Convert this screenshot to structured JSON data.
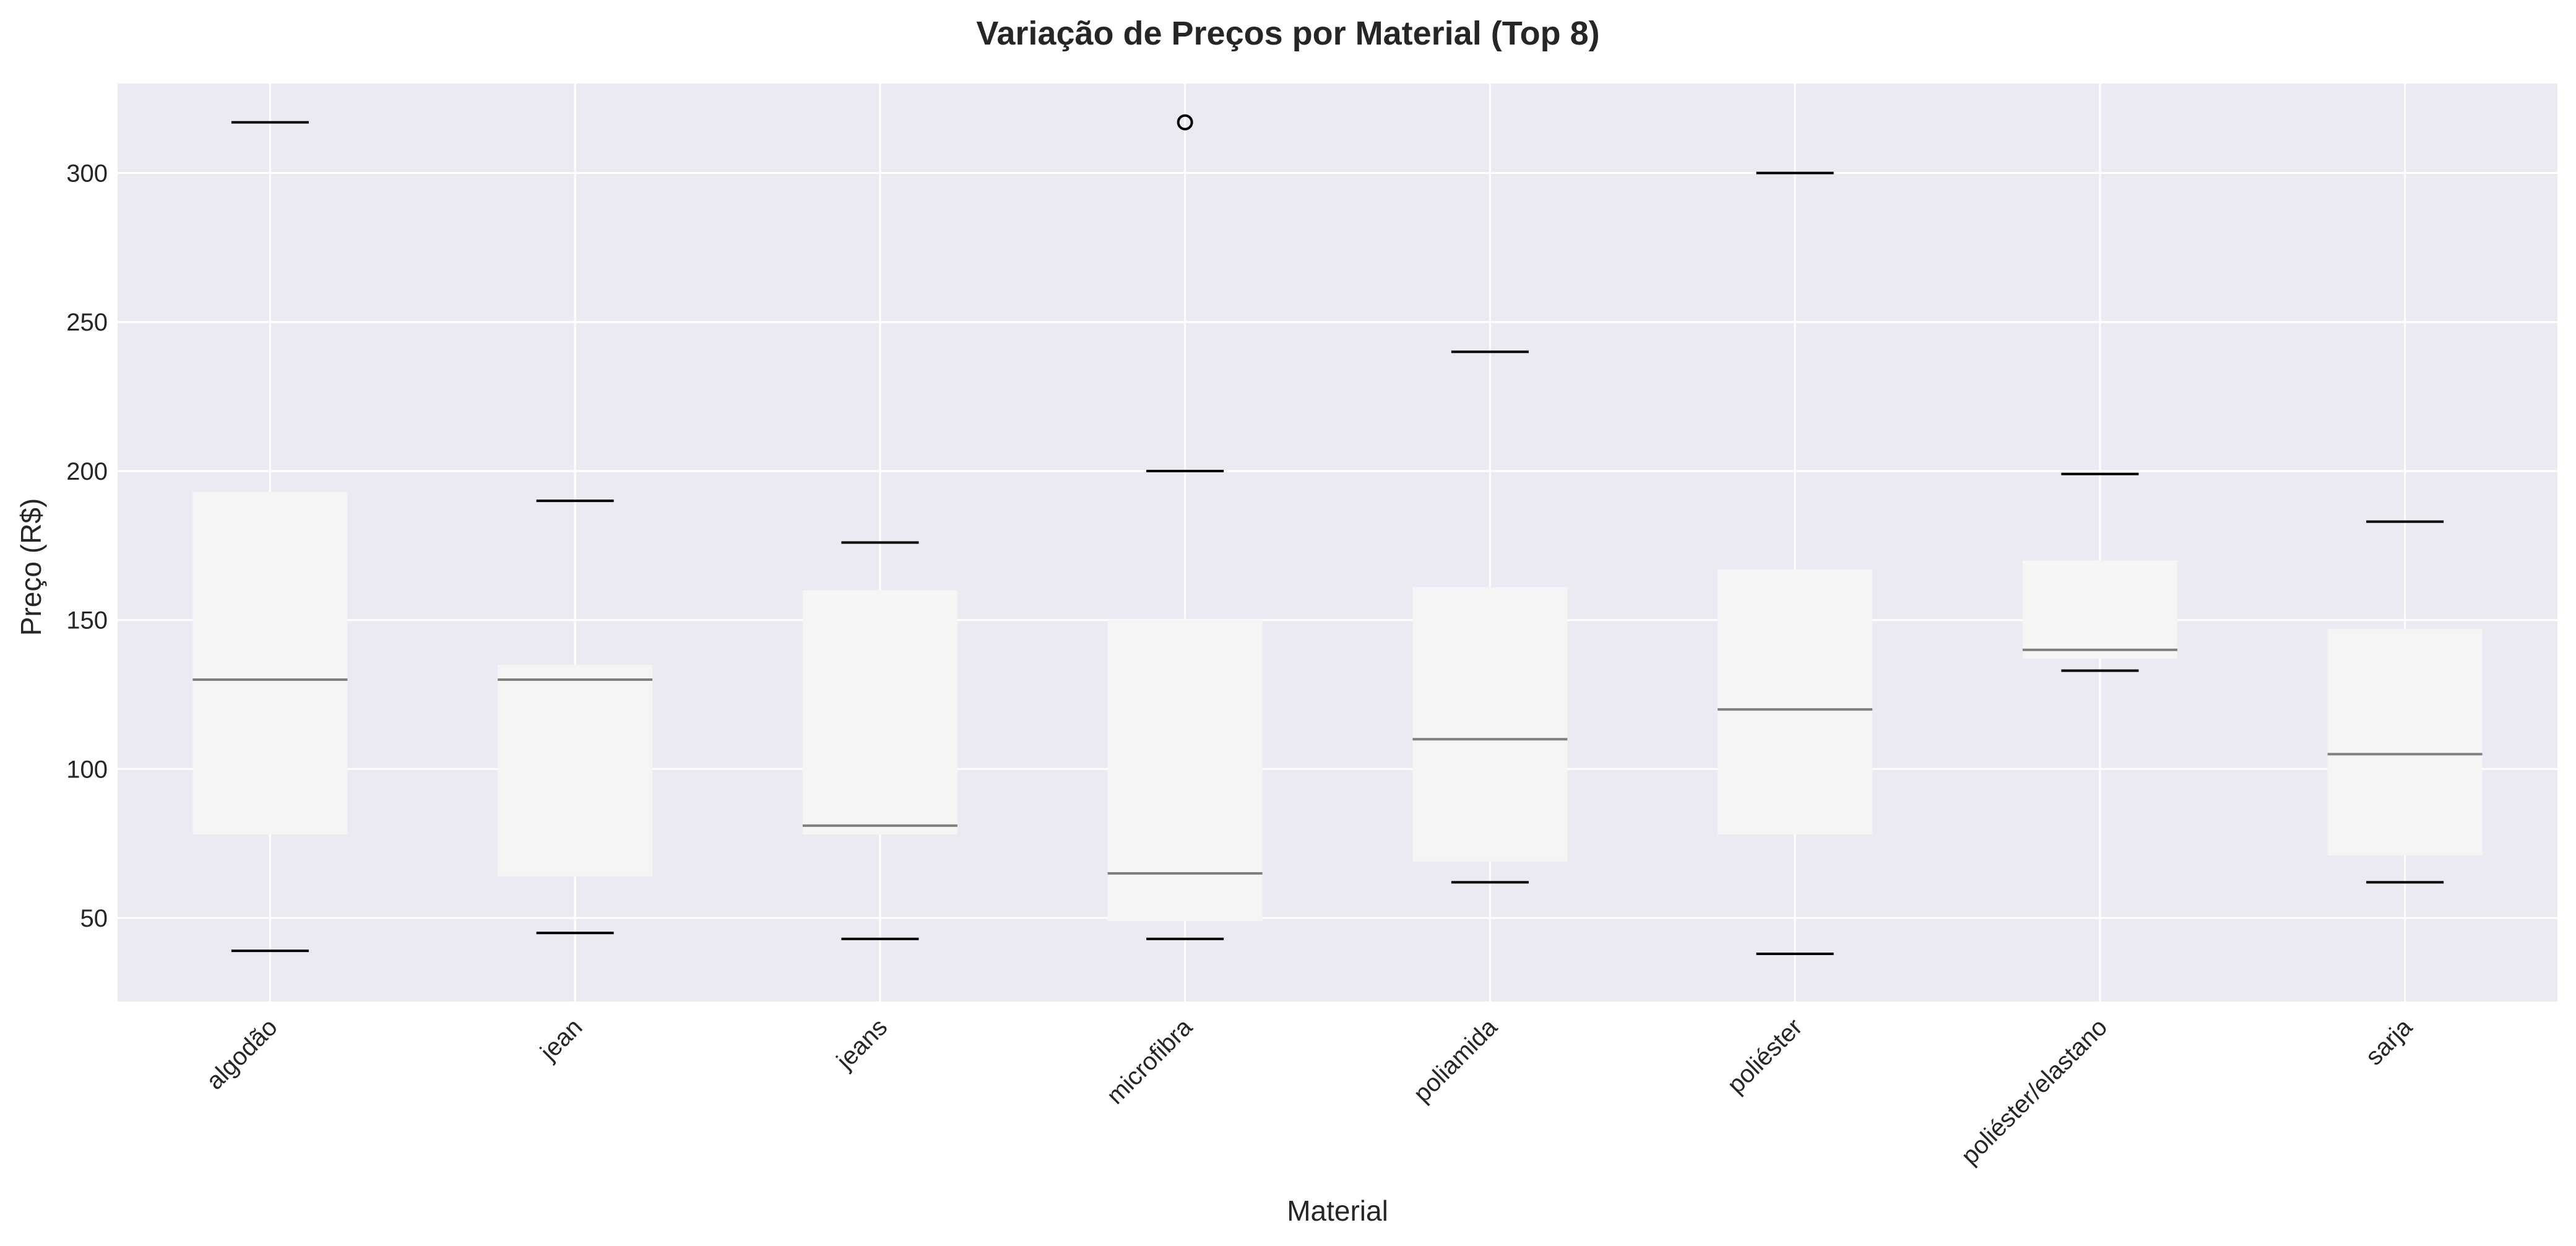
{
  "chart_data": {
    "type": "box",
    "title": "Variação de Preços por Material (Top 8)",
    "xlabel": "Material",
    "ylabel": "Preço (R$)",
    "ylim": [
      22,
      330
    ],
    "yticks": [
      50,
      100,
      150,
      200,
      250,
      300
    ],
    "grid": true,
    "categories": [
      "algodão",
      "jean",
      "jeans",
      "microfibra",
      "poliamida",
      "poliéster",
      "poliéster/elastano",
      "sarja"
    ],
    "boxes": [
      {
        "category": "algodão",
        "whisker_low": 39,
        "q1": 78,
        "median": 130,
        "q3": 193,
        "whisker_high": 317,
        "outliers": []
      },
      {
        "category": "jean",
        "whisker_low": 45,
        "q1": 64,
        "median": 130,
        "q3": 135,
        "whisker_high": 190,
        "outliers": []
      },
      {
        "category": "jeans",
        "whisker_low": 43,
        "q1": 78,
        "median": 81,
        "q3": 160,
        "whisker_high": 176,
        "outliers": []
      },
      {
        "category": "microfibra",
        "whisker_low": 43,
        "q1": 49,
        "median": 65,
        "q3": 150,
        "whisker_high": 200,
        "outliers": [
          317
        ]
      },
      {
        "category": "poliamida",
        "whisker_low": 62,
        "q1": 69,
        "median": 110,
        "q3": 161,
        "whisker_high": 240,
        "outliers": []
      },
      {
        "category": "poliéster",
        "whisker_low": 38,
        "q1": 78,
        "median": 120,
        "q3": 167,
        "whisker_high": 300,
        "outliers": []
      },
      {
        "category": "poliéster/elastano",
        "whisker_low": 133,
        "q1": 137,
        "median": 140,
        "q3": 170,
        "whisker_high": 199,
        "outliers": []
      },
      {
        "category": "sarja",
        "whisker_low": 62,
        "q1": 71,
        "median": 105,
        "q3": 147,
        "whisker_high": 183,
        "outliers": []
      }
    ],
    "colors": {
      "plot_background": "#eaeaf2",
      "grid": "#ffffff",
      "box_fill": "#f5f5f5",
      "median_line": "#808080",
      "whisker_cap": "#000000",
      "text": "#262626"
    }
  }
}
